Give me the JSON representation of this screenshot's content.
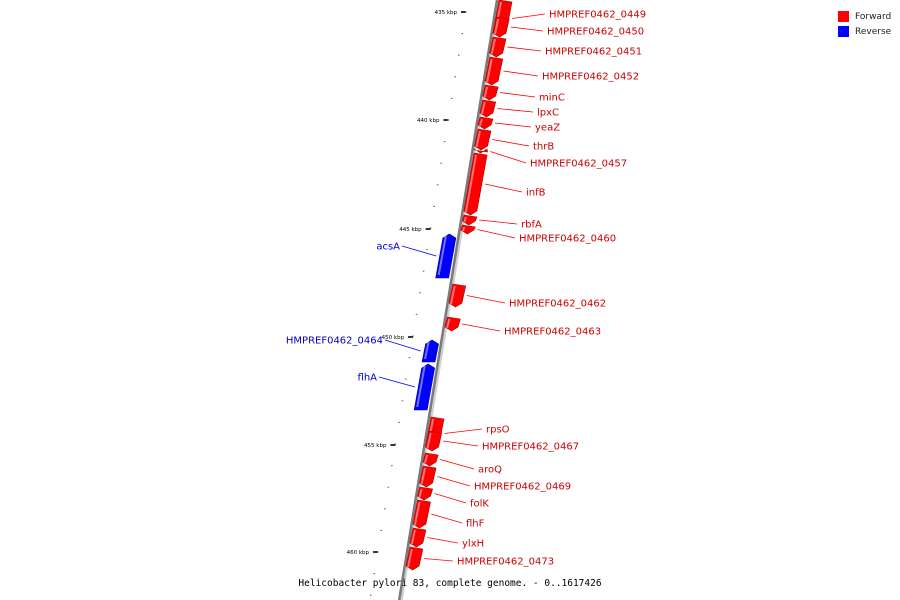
{
  "legend": {
    "forward": {
      "label": "Forward",
      "color": "#ff0000"
    },
    "reverse": {
      "label": "Reverse",
      "color": "#0000ff"
    }
  },
  "caption": "Helicobacter pylori 83, complete genome. - 0..1617426",
  "scale": {
    "ticks": [
      "435 kbp",
      "440 kbp",
      "445 kbp",
      "450 kbp",
      "455 kbp",
      "460 kbp"
    ]
  },
  "genes": [
    {
      "name": "HMPREF0462_0449",
      "strand": "forward"
    },
    {
      "name": "HMPREF0462_0450",
      "strand": "forward"
    },
    {
      "name": "HMPREF0462_0451",
      "strand": "forward"
    },
    {
      "name": "HMPREF0462_0452",
      "strand": "forward"
    },
    {
      "name": "minC",
      "strand": "forward"
    },
    {
      "name": "lpxC",
      "strand": "forward"
    },
    {
      "name": "yeaZ",
      "strand": "forward"
    },
    {
      "name": "thrB",
      "strand": "forward"
    },
    {
      "name": "HMPREF0462_0457",
      "strand": "forward"
    },
    {
      "name": "infB",
      "strand": "forward"
    },
    {
      "name": "rbfA",
      "strand": "forward"
    },
    {
      "name": "HMPREF0462_0460",
      "strand": "forward"
    },
    {
      "name": "acsA",
      "strand": "reverse"
    },
    {
      "name": "HMPREF0462_0462",
      "strand": "forward"
    },
    {
      "name": "HMPREF0462_0463",
      "strand": "forward"
    },
    {
      "name": "HMPREF0462_0464",
      "strand": "reverse"
    },
    {
      "name": "flhA",
      "strand": "reverse"
    },
    {
      "name": "rpsO",
      "strand": "forward"
    },
    {
      "name": "HMPREF0462_0467",
      "strand": "forward"
    },
    {
      "name": "aroQ",
      "strand": "forward"
    },
    {
      "name": "HMPREF0462_0469",
      "strand": "forward"
    },
    {
      "name": "folK",
      "strand": "forward"
    },
    {
      "name": "flhF",
      "strand": "forward"
    },
    {
      "name": "ylxH",
      "strand": "forward"
    },
    {
      "name": "HMPREF0462_0473",
      "strand": "forward"
    }
  ]
}
